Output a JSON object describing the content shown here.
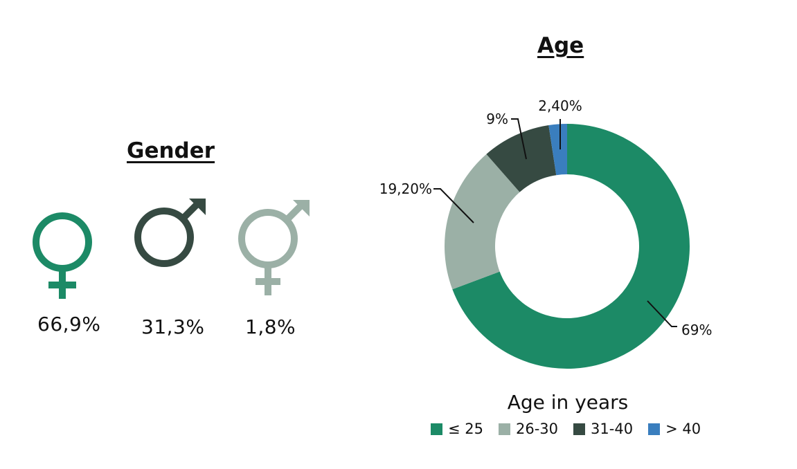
{
  "colors": {
    "green": "#1c8a66",
    "dark": "#364a42",
    "gray": "#9bb0a6",
    "blue": "#3a7ebe"
  },
  "gender": {
    "title": "Gender",
    "items": [
      {
        "icon": "female-icon",
        "value": "66,9%",
        "color": "#1c8a66"
      },
      {
        "icon": "male-icon",
        "value": "31,3%",
        "color": "#364a42"
      },
      {
        "icon": "intersex-icon",
        "value": "1,8%",
        "color": "#9bb0a6"
      }
    ]
  },
  "age": {
    "title": "Age",
    "legend_title": "Age in years"
  },
  "chart_data": {
    "type": "pie",
    "donut": true,
    "title": "Age",
    "legend_title": "Age in years",
    "legend_position": "bottom",
    "categories": [
      "≤ 25",
      "26-30",
      "31-40",
      "> 40"
    ],
    "values": [
      69,
      19.2,
      9,
      2.4
    ],
    "labels": [
      "69%",
      "19,20%",
      "9%",
      "2,40%"
    ],
    "colors": [
      "#1c8a66",
      "#9bb0a6",
      "#364a42",
      "#3a7ebe"
    ]
  }
}
